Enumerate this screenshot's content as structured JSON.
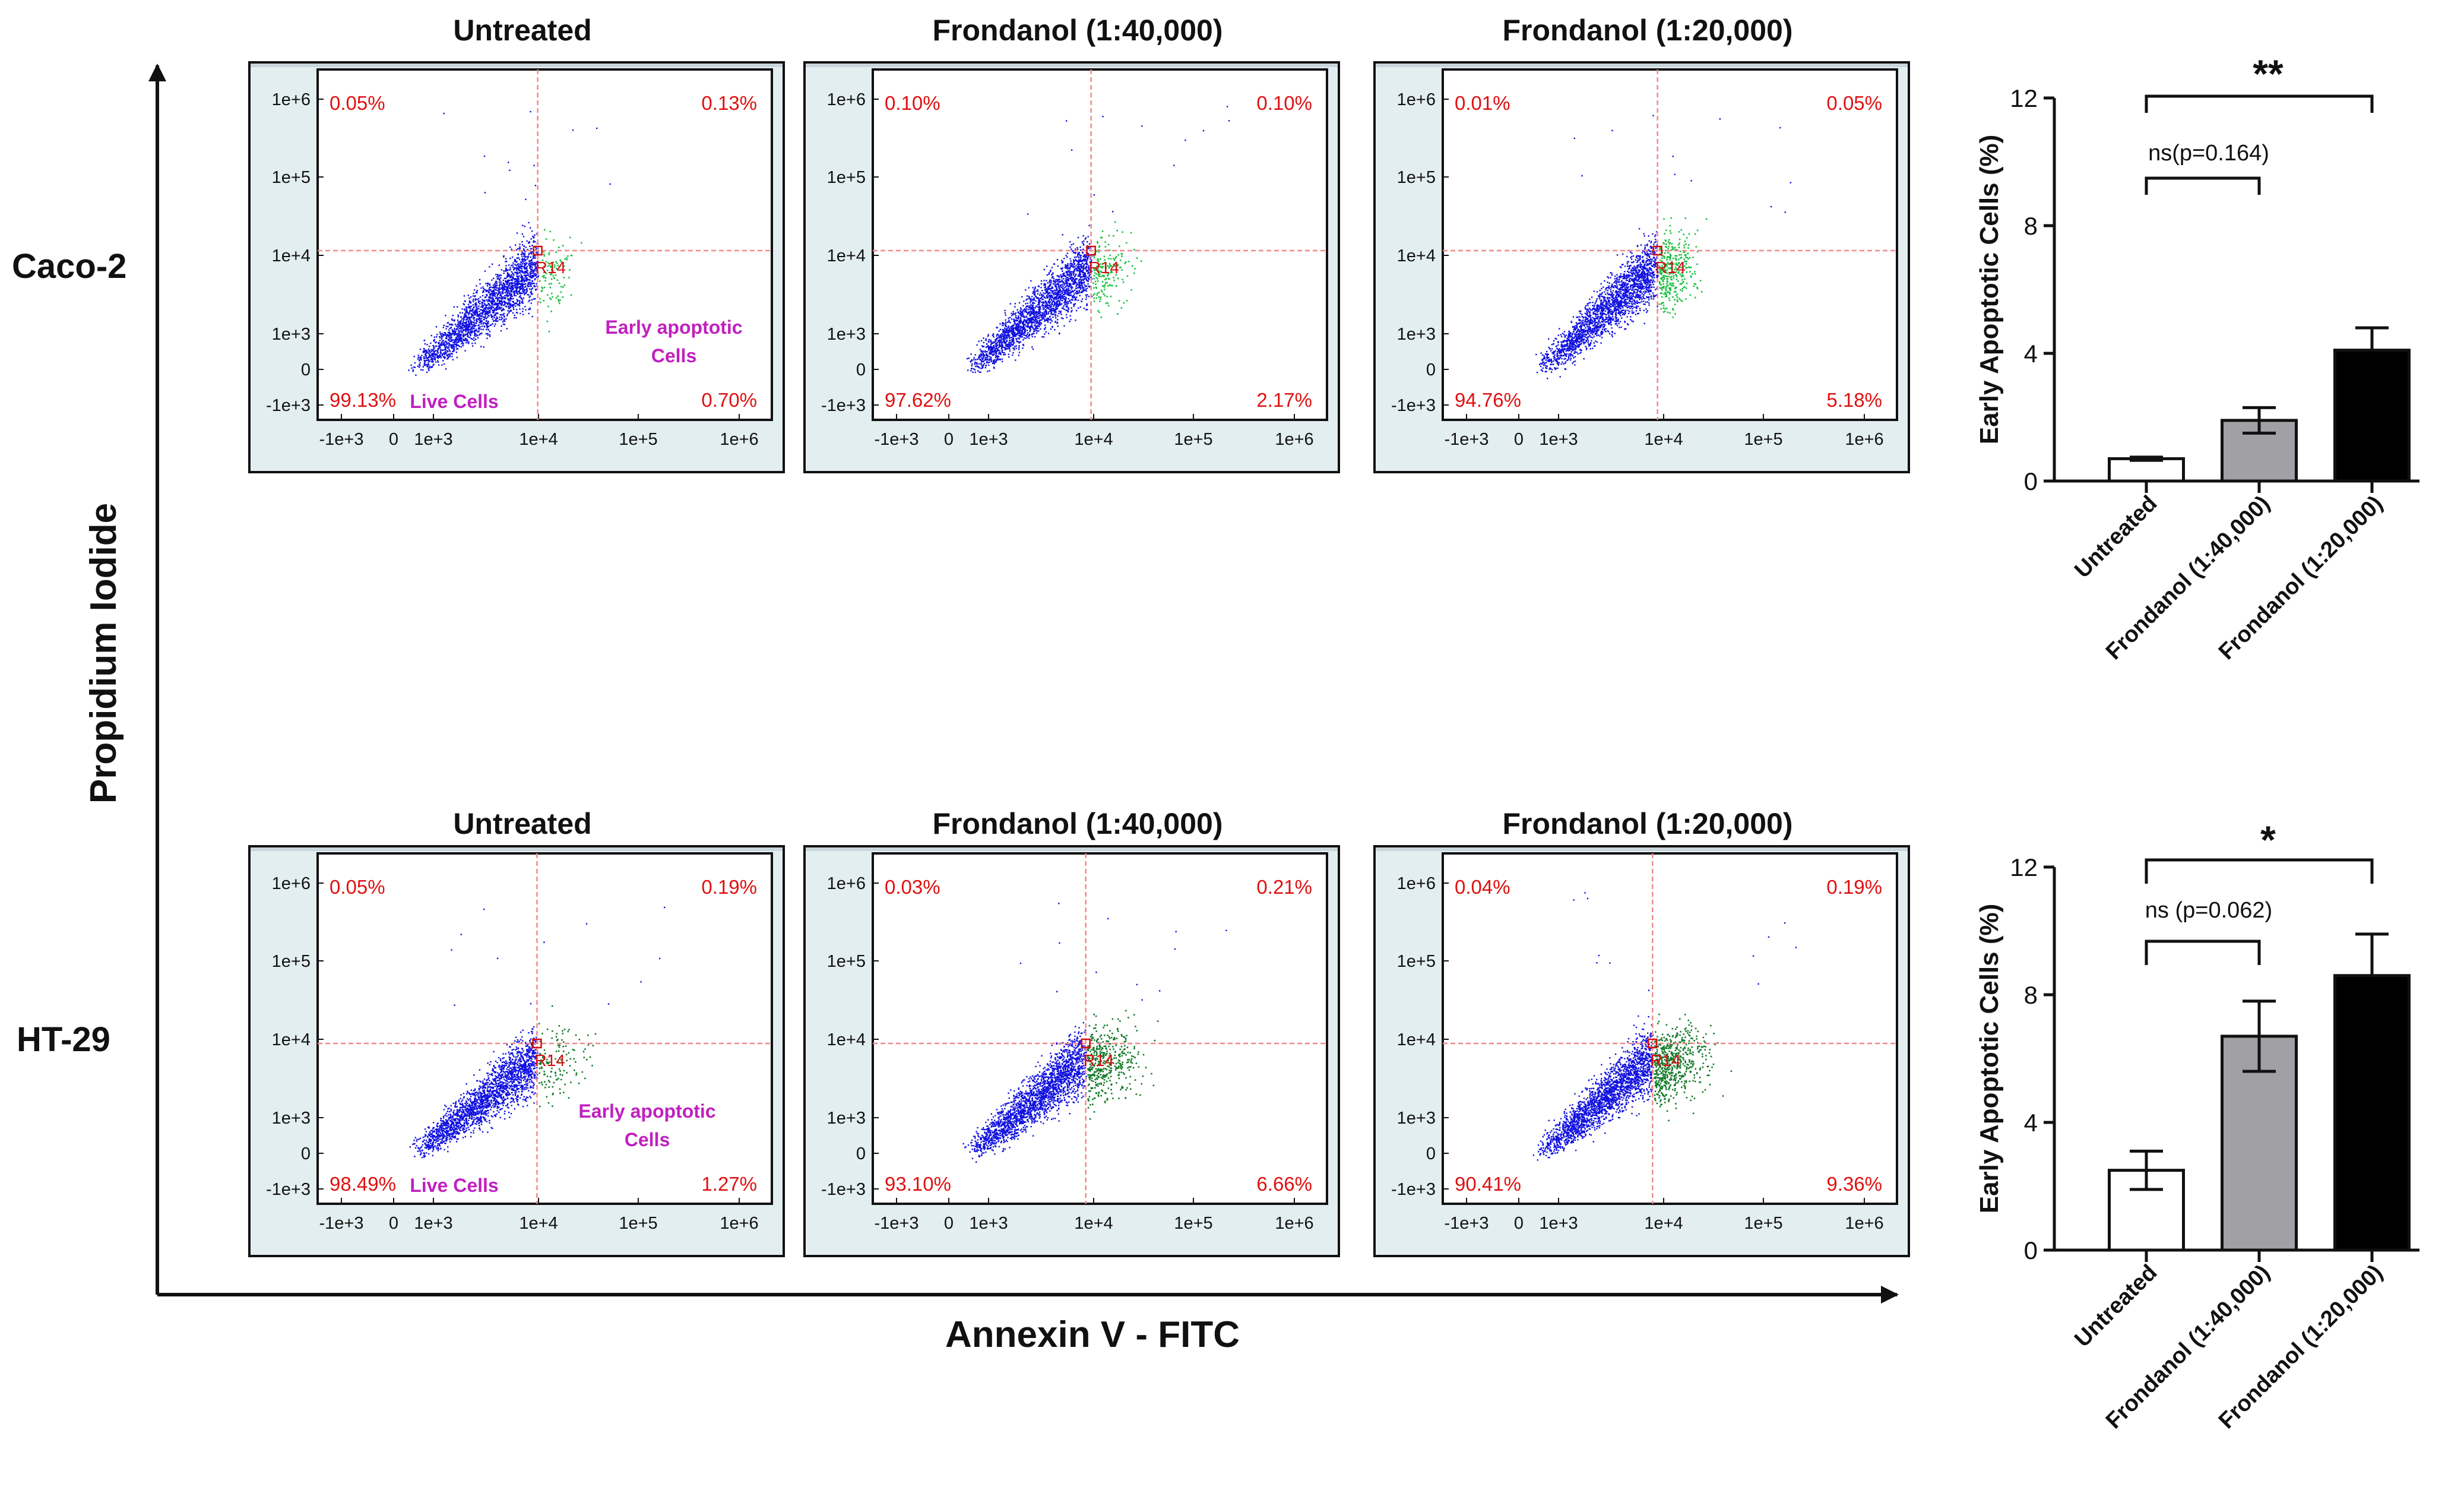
{
  "figure": {
    "row_labels": [
      "Caco-2",
      "HT-29"
    ],
    "y_axis_label": "Propidium Iodide",
    "x_axis_label": "Annexin V - FITC",
    "flow_x_ticks": [
      "-1e+3",
      "0",
      "1e+3",
      "1e+4",
      "1e+5",
      "1e+6"
    ],
    "flow_y_ticks": [
      "1e+6",
      "1e+5",
      "1e+4",
      "1e+3",
      "0",
      "-1e+3"
    ],
    "gate_label": "R14",
    "annotations": {
      "early": "Early apoptotic",
      "cells": "Cells",
      "live": "Live Cells"
    }
  },
  "chart_data": [
    {
      "type": "scatter",
      "cell_line": "Caco-2",
      "title": "Untreated",
      "quadrants": {
        "upper_left": "0.05%",
        "upper_right": "0.13%",
        "lower_left": "99.13%",
        "lower_right": "0.70%"
      }
    },
    {
      "type": "scatter",
      "cell_line": "Caco-2",
      "title": "Frondanol (1:40,000)",
      "quadrants": {
        "upper_left": "0.10%",
        "upper_right": "0.10%",
        "lower_left": "97.62%",
        "lower_right": "2.17%"
      }
    },
    {
      "type": "scatter",
      "cell_line": "Caco-2",
      "title": "Frondanol (1:20,000)",
      "quadrants": {
        "upper_left": "0.01%",
        "upper_right": "0.05%",
        "lower_left": "94.76%",
        "lower_right": "5.18%"
      }
    },
    {
      "type": "scatter",
      "cell_line": "HT-29",
      "title": "Untreated",
      "quadrants": {
        "upper_left": "0.05%",
        "upper_right": "0.19%",
        "lower_left": "98.49%",
        "lower_right": "1.27%"
      }
    },
    {
      "type": "scatter",
      "cell_line": "HT-29",
      "title": "Frondanol (1:40,000)",
      "quadrants": {
        "upper_left": "0.03%",
        "upper_right": "0.21%",
        "lower_left": "93.10%",
        "lower_right": "6.66%"
      }
    },
    {
      "type": "scatter",
      "cell_line": "HT-29",
      "title": "Frondanol (1:20,000)",
      "quadrants": {
        "upper_left": "0.04%",
        "upper_right": "0.19%",
        "lower_left": "90.41%",
        "lower_right": "9.36%"
      }
    },
    {
      "type": "bar",
      "cell_line": "Caco-2",
      "categories": [
        "Untreated",
        "Frondanol (1:40,000)",
        "Frondanol (1:20,000)"
      ],
      "values": [
        0.7,
        1.9,
        4.1
      ],
      "errors": [
        0.05,
        0.4,
        0.7
      ],
      "bar_colors": [
        "#ffffff",
        "#a0a0a5",
        "#000000"
      ],
      "ylabel": "Early Apoptotic Cells (%)",
      "ylim": [
        0,
        12
      ],
      "yticks": [
        "0",
        "4",
        "8",
        "12"
      ],
      "significance": [
        {
          "from": 0,
          "to": 1,
          "label": "ns(p=0.164)"
        },
        {
          "from": 0,
          "to": 2,
          "label": "**"
        }
      ]
    },
    {
      "type": "bar",
      "cell_line": "HT-29",
      "categories": [
        "Untreated",
        "Frondanol (1:40,000)",
        "Frondanol (1:20,000)"
      ],
      "values": [
        2.5,
        6.7,
        8.6
      ],
      "errors": [
        0.6,
        1.1,
        1.3
      ],
      "bar_colors": [
        "#ffffff",
        "#a0a0a5",
        "#000000"
      ],
      "ylabel": "Early Apoptotic Cells (%)",
      "ylim": [
        0,
        12
      ],
      "yticks": [
        "0",
        "4",
        "8",
        "12"
      ],
      "significance": [
        {
          "from": 0,
          "to": 1,
          "label": "ns (p=0.062)"
        },
        {
          "from": 0,
          "to": 2,
          "label": "*"
        }
      ]
    }
  ]
}
